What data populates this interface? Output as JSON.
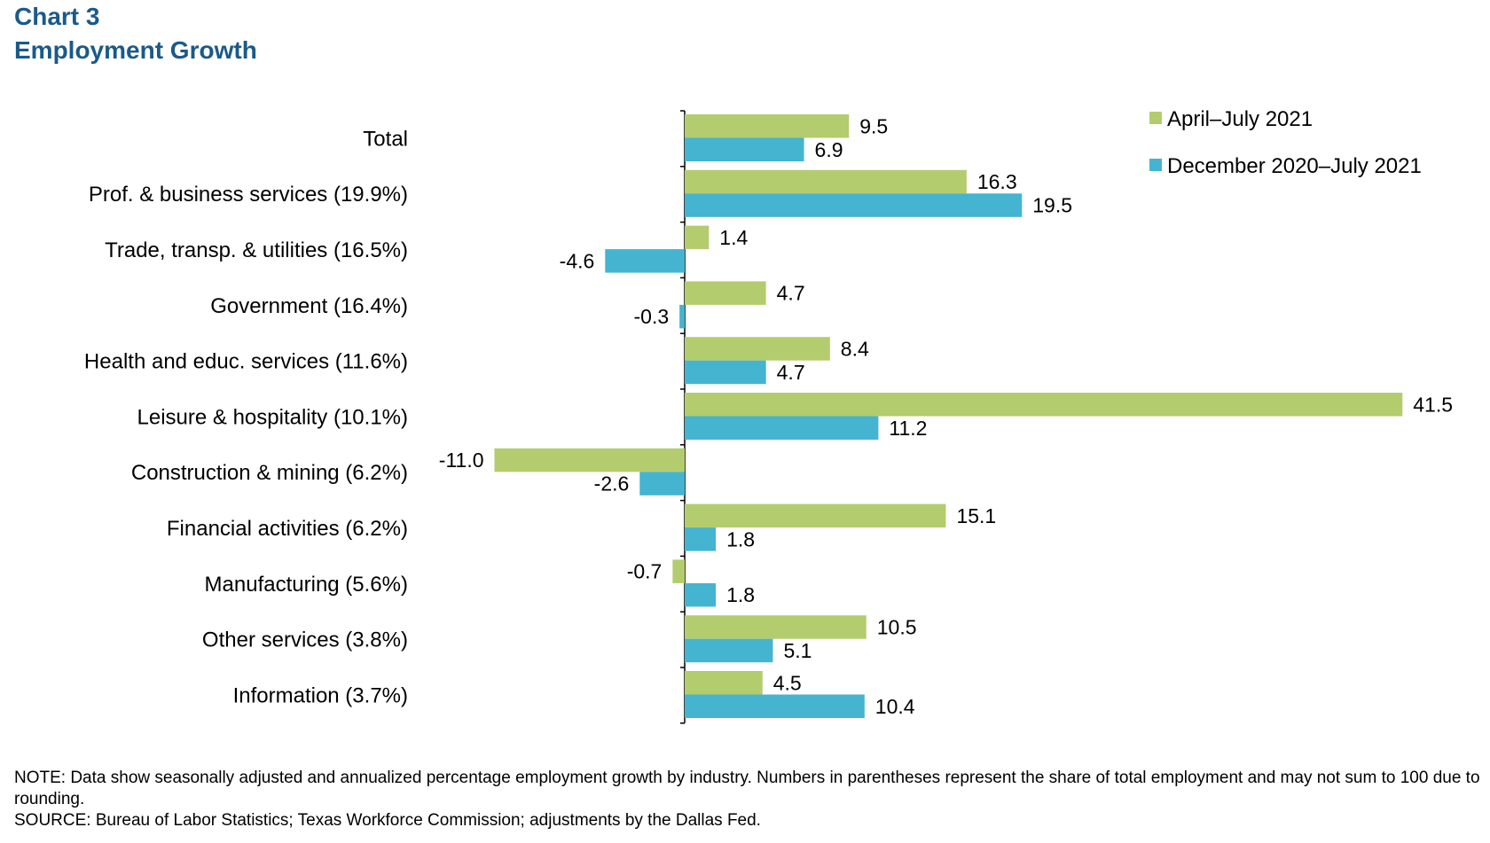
{
  "header": {
    "chart_label": "Chart 3",
    "title": "Employment Growth"
  },
  "footer": {
    "note": "NOTE: Data show seasonally adjusted and annualized percentage employment growth by industry. Numbers in parentheses represent the share of total employment and may not sum to 100 due to rounding.",
    "source": "SOURCE: Bureau of Labor Statistics; Texas Workforce Commission; adjustments by the Dallas Fed."
  },
  "chart_data": {
    "type": "bar",
    "orientation": "horizontal",
    "title": "Employment Growth",
    "categories": [
      "Total",
      "Prof. & business services (19.9%)",
      "Trade, transp. & utilities (16.5%)",
      "Government (16.4%)",
      "Health and educ. services (11.6%)",
      "Leisure & hospitality (10.1%)",
      "Construction & mining (6.2%)",
      "Financial activities (6.2%)",
      "Manufacturing (5.6%)",
      "Other services (3.8%)",
      "Information (3.7%)"
    ],
    "series": [
      {
        "name": "April–July 2021",
        "color": "#b3cc6e",
        "values": [
          9.5,
          16.3,
          1.4,
          4.7,
          8.4,
          41.5,
          -11.0,
          15.1,
          -0.7,
          10.5,
          4.5
        ]
      },
      {
        "name": "December 2020–July 2021",
        "color": "#44b4d0",
        "values": [
          6.9,
          19.5,
          -4.6,
          -0.3,
          4.7,
          11.2,
          -2.6,
          1.8,
          1.8,
          5.1,
          10.4
        ]
      }
    ],
    "legend_position": "top-right",
    "data_labels": true,
    "grid": false
  }
}
